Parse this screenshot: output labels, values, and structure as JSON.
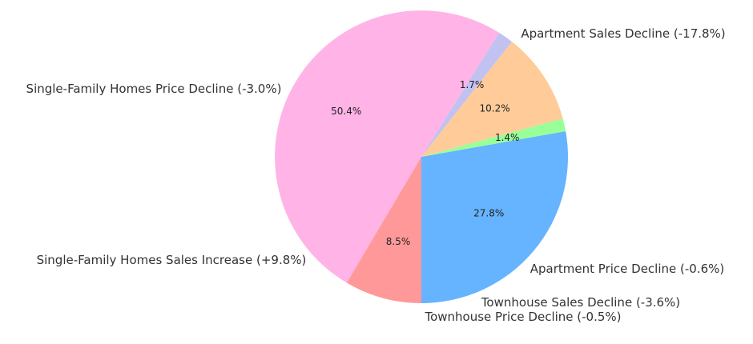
{
  "chart_data": {
    "type": "pie",
    "title": "",
    "start_angle_deg": 270,
    "direction": "counterclockwise",
    "slices": [
      {
        "label": "Single-Family Homes Sales Increase (+9.8%)",
        "value": 27.8,
        "pct_text": "27.8%",
        "color": "#66b3ff"
      },
      {
        "label": "Townhouse Price Decline (-0.5%)",
        "value": 1.4,
        "pct_text": "1.4%",
        "color": "#99ff99"
      },
      {
        "label": "Townhouse Sales Decline (-3.6%)",
        "value": 10.2,
        "pct_text": "10.2%",
        "color": "#ffcc99"
      },
      {
        "label": "Apartment Price Decline (-0.6%)",
        "value": 1.7,
        "pct_text": "1.7%",
        "color": "#c2c2f0"
      },
      {
        "label": "Apartment Sales Decline (-17.8%)",
        "value": 50.4,
        "pct_text": "50.4%",
        "color": "#ffb3e6"
      },
      {
        "label": "Single-Family Homes Price Decline (-3.0%)",
        "value": 8.5,
        "pct_text": "8.5%",
        "color": "#ff9999"
      }
    ]
  }
}
